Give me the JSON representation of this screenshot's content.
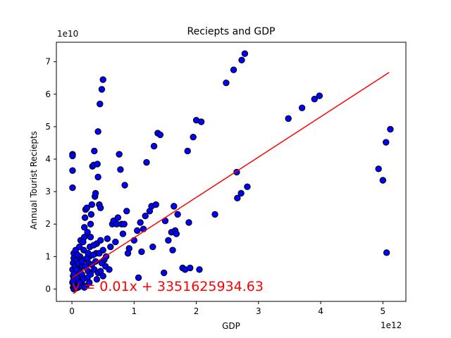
{
  "chart_data": {
    "type": "scatter",
    "title": "Reciepts and GDP",
    "xlabel": "GDP",
    "ylabel": "Annual Tourist Reciepts",
    "x_offset_label": "1e10",
    "x_multiplier_label": "1e12",
    "xlim": [
      -0.25,
      5.37
    ],
    "ylim": [
      -0.38,
      7.6
    ],
    "x_ticks": [
      0,
      1,
      2,
      3,
      4,
      5
    ],
    "y_ticks": [
      0,
      1,
      2,
      3,
      4,
      5,
      6,
      7
    ],
    "x_tick_labels": [
      "0",
      "1",
      "2",
      "3",
      "4",
      "5"
    ],
    "y_tick_labels": [
      "0",
      "1",
      "2",
      "3",
      "4",
      "5",
      "6",
      "7"
    ],
    "grid": false,
    "marker_color": "#0000ff",
    "marker_edge": "#000000",
    "fit_color": "#ff0000",
    "regression": {
      "label": "y = 0.01x + 3351625934.63",
      "x": [
        0.0,
        5.1
      ],
      "y": [
        0.34,
        6.67
      ]
    },
    "points": [
      [
        0.01,
        4.15
      ],
      [
        0.01,
        4.1
      ],
      [
        0.01,
        3.65
      ],
      [
        0.01,
        3.12
      ],
      [
        0.03,
        1.1
      ],
      [
        0.03,
        0.95
      ],
      [
        0.02,
        0.8
      ],
      [
        0.01,
        0.6
      ],
      [
        0.02,
        0.4
      ],
      [
        0.01,
        0.2
      ],
      [
        0.02,
        0.05
      ],
      [
        0.03,
        0.0
      ],
      [
        0.05,
        0.15
      ],
      [
        0.04,
        0.3
      ],
      [
        0.06,
        0.5
      ],
      [
        0.05,
        0.7
      ],
      [
        0.07,
        0.9
      ],
      [
        0.06,
        1.2
      ],
      [
        0.08,
        0.1
      ],
      [
        0.09,
        0.3
      ],
      [
        0.1,
        0.05
      ],
      [
        0.11,
        0.4
      ],
      [
        0.12,
        0.6
      ],
      [
        0.1,
        0.8
      ],
      [
        0.13,
        1.0
      ],
      [
        0.12,
        1.3
      ],
      [
        0.14,
        1.5
      ],
      [
        0.15,
        0.2
      ],
      [
        0.16,
        0.45
      ],
      [
        0.17,
        0.7
      ],
      [
        0.18,
        0.9
      ],
      [
        0.19,
        1.2
      ],
      [
        0.2,
        1.6
      ],
      [
        0.2,
        1.9
      ],
      [
        0.21,
        2.2
      ],
      [
        0.22,
        2.45
      ],
      [
        0.24,
        2.5
      ],
      [
        0.23,
        0.1
      ],
      [
        0.25,
        0.35
      ],
      [
        0.26,
        0.55
      ],
      [
        0.27,
        0.8
      ],
      [
        0.28,
        1.0
      ],
      [
        0.29,
        1.3
      ],
      [
        0.3,
        1.6
      ],
      [
        0.3,
        2.0
      ],
      [
        0.31,
        2.3
      ],
      [
        0.32,
        2.6
      ],
      [
        0.33,
        3.78
      ],
      [
        0.35,
        3.82
      ],
      [
        0.36,
        4.25
      ],
      [
        0.37,
        2.85
      ],
      [
        0.38,
        2.95
      ],
      [
        0.39,
        1.1
      ],
      [
        0.4,
        1.4
      ],
      [
        0.4,
        0.3
      ],
      [
        0.41,
        3.85
      ],
      [
        0.42,
        4.85
      ],
      [
        0.42,
        3.45
      ],
      [
        0.44,
        2.6
      ],
      [
        0.45,
        5.7
      ],
      [
        0.46,
        2.5
      ],
      [
        0.46,
        1.5
      ],
      [
        0.48,
        6.15
      ],
      [
        0.5,
        6.45
      ],
      [
        0.5,
        1.2
      ],
      [
        0.52,
        0.9
      ],
      [
        0.54,
        0.7
      ],
      [
        0.55,
        1.0
      ],
      [
        0.57,
        1.55
      ],
      [
        0.6,
        0.6
      ],
      [
        0.62,
        1.3
      ],
      [
        0.65,
        2.0
      ],
      [
        0.67,
        2.1
      ],
      [
        0.7,
        1.45
      ],
      [
        0.72,
        2.0
      ],
      [
        0.74,
        2.2
      ],
      [
        0.76,
        4.15
      ],
      [
        0.78,
        3.68
      ],
      [
        0.8,
        2.0
      ],
      [
        0.82,
        1.7
      ],
      [
        0.84,
        2.0
      ],
      [
        0.85,
        3.2
      ],
      [
        0.88,
        2.4
      ],
      [
        0.9,
        1.1
      ],
      [
        0.92,
        1.25
      ],
      [
        1.0,
        1.5
      ],
      [
        1.05,
        1.8
      ],
      [
        1.07,
        0.35
      ],
      [
        1.1,
        2.05
      ],
      [
        1.12,
        1.15
      ],
      [
        1.15,
        1.85
      ],
      [
        1.18,
        2.25
      ],
      [
        1.2,
        3.9
      ],
      [
        1.25,
        2.4
      ],
      [
        1.28,
        2.55
      ],
      [
        1.3,
        1.3
      ],
      [
        1.32,
        4.4
      ],
      [
        1.35,
        2.6
      ],
      [
        1.38,
        4.8
      ],
      [
        1.42,
        4.75
      ],
      [
        1.48,
        0.5
      ],
      [
        1.5,
        2.1
      ],
      [
        1.55,
        1.5
      ],
      [
        1.6,
        1.75
      ],
      [
        1.62,
        1.2
      ],
      [
        1.64,
        2.55
      ],
      [
        1.66,
        1.8
      ],
      [
        1.68,
        1.7
      ],
      [
        1.7,
        2.3
      ],
      [
        1.78,
        0.65
      ],
      [
        1.82,
        0.6
      ],
      [
        1.86,
        4.25
      ],
      [
        1.88,
        2.05
      ],
      [
        1.9,
        0.65
      ],
      [
        1.95,
        4.68
      ],
      [
        2.0,
        5.2
      ],
      [
        2.05,
        0.6
      ],
      [
        2.08,
        5.15
      ],
      [
        2.3,
        2.3
      ],
      [
        2.48,
        6.35
      ],
      [
        2.6,
        6.75
      ],
      [
        2.65,
        3.6
      ],
      [
        2.66,
        2.8
      ],
      [
        2.72,
        2.95
      ],
      [
        2.73,
        7.05
      ],
      [
        2.78,
        7.25
      ],
      [
        2.82,
        3.15
      ],
      [
        3.48,
        5.25
      ],
      [
        3.7,
        5.58
      ],
      [
        3.9,
        5.85
      ],
      [
        3.98,
        5.95
      ],
      [
        4.93,
        3.7
      ],
      [
        5.0,
        3.35
      ],
      [
        5.05,
        4.52
      ],
      [
        5.06,
        1.12
      ],
      [
        5.12,
        4.92
      ],
      [
        0.02,
        0.25
      ],
      [
        0.04,
        0.08
      ],
      [
        0.06,
        0.02
      ],
      [
        0.08,
        0.35
      ],
      [
        0.1,
        0.55
      ],
      [
        0.14,
        0.1
      ],
      [
        0.16,
        0.85
      ],
      [
        0.18,
        0.3
      ],
      [
        0.2,
        0.05
      ],
      [
        0.22,
        0.7
      ],
      [
        0.24,
        0.95
      ],
      [
        0.26,
        1.1
      ],
      [
        0.28,
        0.2
      ],
      [
        0.3,
        0.45
      ],
      [
        0.32,
        0.75
      ],
      [
        0.34,
        1.05
      ],
      [
        0.36,
        0.6
      ],
      [
        0.38,
        0.85
      ],
      [
        0.42,
        0.5
      ],
      [
        0.44,
        1.1
      ],
      [
        0.48,
        0.8
      ],
      [
        0.46,
        0.55
      ],
      [
        0.5,
        0.4
      ],
      [
        0.35,
        1.35
      ],
      [
        0.25,
        1.75
      ],
      [
        0.18,
        1.45
      ],
      [
        0.12,
        0.2
      ],
      [
        0.07,
        0.6
      ],
      [
        0.03,
        0.45
      ],
      [
        0.09,
        1.05
      ]
    ]
  }
}
